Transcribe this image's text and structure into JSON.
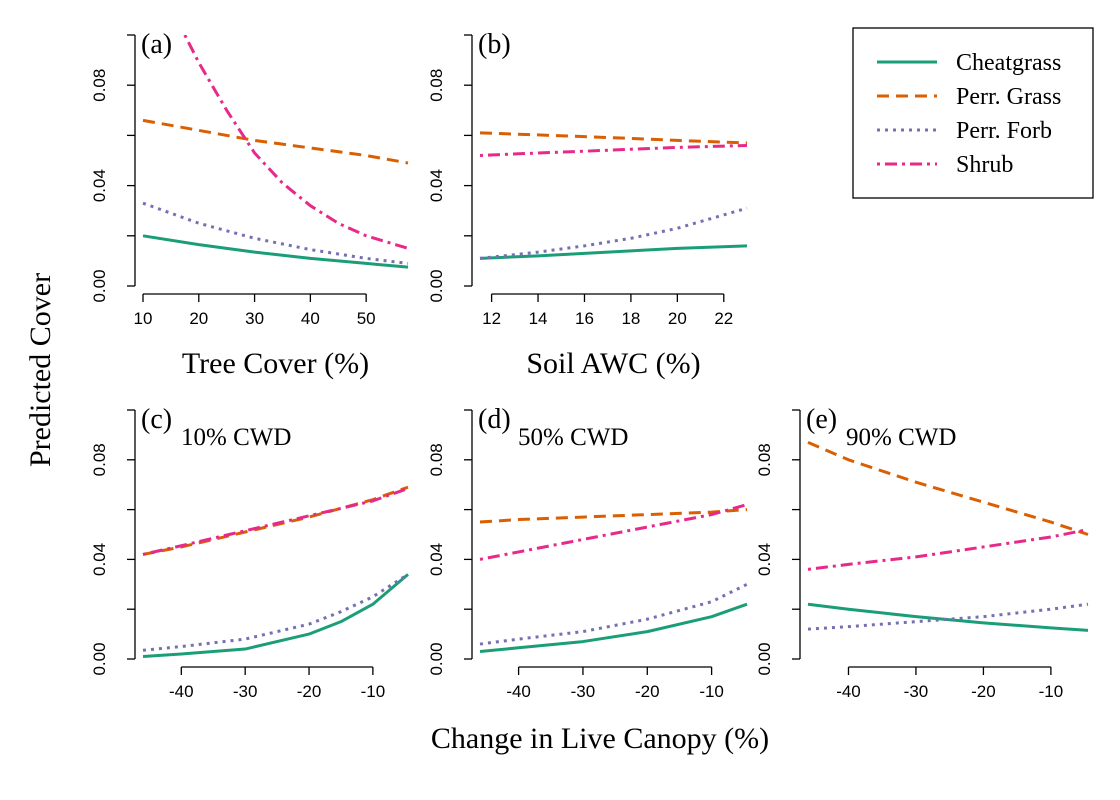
{
  "figure": {
    "ylabel": "Predicted Cover",
    "shared_xlabel": "Change in Live Canopy (%)"
  },
  "legend": {
    "placement": "top-right",
    "entries": [
      {
        "label": "Cheatgrass",
        "color": "#1b9e77",
        "dash": "solid"
      },
      {
        "label": "Perr. Grass",
        "color": "#d95f02",
        "dash": "dashed"
      },
      {
        "label": "Perr. Forb",
        "color": "#7570b3",
        "dash": "dotted"
      },
      {
        "label": "Shrub",
        "color": "#e7298a",
        "dash": "dotdash"
      }
    ]
  },
  "chart_data": [
    {
      "type": "line",
      "panel": "(a)",
      "subtitle": "",
      "xlabel": "Tree Cover (%)",
      "xlim": [
        10,
        57.5
      ],
      "ylim": [
        0,
        0.1
      ],
      "xticks": [
        "10",
        "20",
        "30",
        "40",
        "50"
      ],
      "yticks": [
        "0.00",
        "0.04",
        "0.08"
      ],
      "series": [
        {
          "name": "Cheatgrass",
          "x": [
            10,
            20,
            30,
            40,
            50,
            57.5
          ],
          "y": [
            0.02,
            0.0165,
            0.0135,
            0.011,
            0.009,
            0.0075
          ]
        },
        {
          "name": "Perr. Grass",
          "x": [
            10,
            20,
            30,
            40,
            50,
            57.5
          ],
          "y": [
            0.066,
            0.062,
            0.058,
            0.055,
            0.052,
            0.049
          ]
        },
        {
          "name": "Perr. Forb",
          "x": [
            10,
            20,
            30,
            40,
            50,
            57.5
          ],
          "y": [
            0.033,
            0.025,
            0.019,
            0.0145,
            0.011,
            0.009
          ]
        },
        {
          "name": "Shrub",
          "x": [
            17.5,
            20,
            25,
            30,
            35,
            40,
            45,
            50,
            57.5
          ],
          "y": [
            0.1,
            0.089,
            0.07,
            0.053,
            0.041,
            0.032,
            0.025,
            0.02,
            0.015
          ]
        }
      ]
    },
    {
      "type": "line",
      "panel": "(b)",
      "subtitle": "",
      "xlabel": "Soil AWC (%)",
      "xlim": [
        11.5,
        23
      ],
      "ylim": [
        0,
        0.1
      ],
      "xticks": [
        "12",
        "14",
        "16",
        "18",
        "20",
        "22"
      ],
      "yticks": [
        "0.00",
        "0.04",
        "0.08"
      ],
      "series": [
        {
          "name": "Cheatgrass",
          "x": [
            11.5,
            14,
            16,
            18,
            20,
            23
          ],
          "y": [
            0.011,
            0.012,
            0.013,
            0.014,
            0.015,
            0.016
          ]
        },
        {
          "name": "Perr. Grass",
          "x": [
            11.5,
            14,
            16,
            18,
            20,
            23
          ],
          "y": [
            0.061,
            0.0602,
            0.0595,
            0.0588,
            0.058,
            0.057
          ]
        },
        {
          "name": "Perr. Forb",
          "x": [
            11.5,
            14,
            16,
            18,
            20,
            23
          ],
          "y": [
            0.011,
            0.0135,
            0.016,
            0.019,
            0.023,
            0.031
          ]
        },
        {
          "name": "Shrub",
          "x": [
            11.5,
            14,
            16,
            18,
            20,
            23
          ],
          "y": [
            0.052,
            0.053,
            0.0537,
            0.0545,
            0.0552,
            0.056
          ]
        }
      ]
    },
    {
      "type": "line",
      "panel": "(c)",
      "subtitle": "10% CWD",
      "xlabel": "",
      "xlim": [
        -46,
        -4.5
      ],
      "ylim": [
        0,
        0.1
      ],
      "xticks": [
        "-40",
        "-30",
        "-20",
        "-10"
      ],
      "yticks": [
        "0.00",
        "0.04",
        "0.08"
      ],
      "series": [
        {
          "name": "Cheatgrass",
          "x": [
            -46,
            -40,
            -30,
            -20,
            -15,
            -10,
            -4.5
          ],
          "y": [
            0.001,
            0.002,
            0.004,
            0.01,
            0.015,
            0.022,
            0.034
          ]
        },
        {
          "name": "Perr. Grass",
          "x": [
            -46,
            -40,
            -30,
            -20,
            -10,
            -4.5
          ],
          "y": [
            0.042,
            0.045,
            0.051,
            0.057,
            0.064,
            0.069
          ]
        },
        {
          "name": "Perr. Forb",
          "x": [
            -46,
            -40,
            -30,
            -20,
            -15,
            -10,
            -4.5
          ],
          "y": [
            0.0035,
            0.005,
            0.008,
            0.014,
            0.019,
            0.025,
            0.034
          ]
        },
        {
          "name": "Shrub",
          "x": [
            -46,
            -40,
            -30,
            -20,
            -10,
            -4.5
          ],
          "y": [
            0.042,
            0.0455,
            0.0515,
            0.0575,
            0.0635,
            0.0685
          ]
        }
      ]
    },
    {
      "type": "line",
      "panel": "(d)",
      "subtitle": "50% CWD",
      "xlabel": "",
      "xlim": [
        -46,
        -4.5
      ],
      "ylim": [
        0,
        0.1
      ],
      "xticks": [
        "-40",
        "-30",
        "-20",
        "-10"
      ],
      "yticks": [
        "0.00",
        "0.04",
        "0.08"
      ],
      "series": [
        {
          "name": "Cheatgrass",
          "x": [
            -46,
            -40,
            -30,
            -20,
            -10,
            -4.5
          ],
          "y": [
            0.003,
            0.0045,
            0.007,
            0.011,
            0.017,
            0.022
          ]
        },
        {
          "name": "Perr. Grass",
          "x": [
            -46,
            -40,
            -30,
            -20,
            -10,
            -4.5
          ],
          "y": [
            0.055,
            0.056,
            0.057,
            0.058,
            0.059,
            0.06
          ]
        },
        {
          "name": "Perr. Forb",
          "x": [
            -46,
            -40,
            -30,
            -20,
            -10,
            -4.5
          ],
          "y": [
            0.006,
            0.008,
            0.011,
            0.016,
            0.023,
            0.03
          ]
        },
        {
          "name": "Shrub",
          "x": [
            -46,
            -40,
            -30,
            -20,
            -10,
            -4.5
          ],
          "y": [
            0.04,
            0.043,
            0.048,
            0.053,
            0.058,
            0.062
          ]
        }
      ]
    },
    {
      "type": "line",
      "panel": "(e)",
      "subtitle": "90% CWD",
      "xlabel": "",
      "xlim": [
        -46,
        -4.5
      ],
      "ylim": [
        0,
        0.1
      ],
      "xticks": [
        "-40",
        "-30",
        "-20",
        "-10"
      ],
      "yticks": [
        "0.00",
        "0.04",
        "0.08"
      ],
      "series": [
        {
          "name": "Cheatgrass",
          "x": [
            -46,
            -40,
            -30,
            -20,
            -10,
            -4.5
          ],
          "y": [
            0.022,
            0.02,
            0.017,
            0.0145,
            0.0125,
            0.0115
          ]
        },
        {
          "name": "Perr. Grass",
          "x": [
            -46,
            -40,
            -30,
            -20,
            -10,
            -4.5
          ],
          "y": [
            0.087,
            0.08,
            0.071,
            0.063,
            0.055,
            0.05
          ]
        },
        {
          "name": "Perr. Forb",
          "x": [
            -46,
            -40,
            -30,
            -20,
            -10,
            -4.5
          ],
          "y": [
            0.012,
            0.013,
            0.015,
            0.017,
            0.02,
            0.022
          ]
        },
        {
          "name": "Shrub",
          "x": [
            -46,
            -40,
            -30,
            -20,
            -10,
            -4.5
          ],
          "y": [
            0.036,
            0.038,
            0.041,
            0.045,
            0.049,
            0.052
          ]
        }
      ]
    }
  ]
}
